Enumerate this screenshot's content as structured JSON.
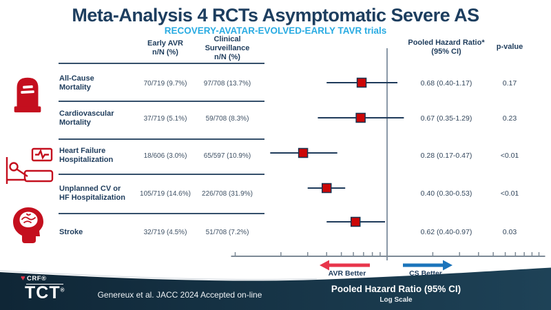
{
  "slide": {
    "title": "Meta-Analysis 4 RCTs Asymptomatic Severe AS",
    "subtitle": "RECOVERY-AVATAR-EVOLVED-EARLY TAVR trials"
  },
  "table": {
    "col_early": "Early AVR\nn/N (%)",
    "col_cs": "Clinical\nSurveillance\nn/N (%)",
    "col_hr": "Pooled Hazard Ratio*\n(95% CI)",
    "col_p": "p-value",
    "rows": [
      {
        "label": "All-Cause\nMortality",
        "early": "70/719 (9.7%)",
        "cs": "97/708 (13.7%)",
        "hr": "0.68 (0.40-1.17)",
        "p": "0.17"
      },
      {
        "label": "Cardiovascular\nMortality",
        "early": "37/719 (5.1%)",
        "cs": "59/708 (8.3%)",
        "hr": "0.67 (0.35-1.29)",
        "p": "0.23"
      },
      {
        "label": "Heart Failure\nHospitalization",
        "early": "18/606 (3.0%)",
        "cs": "65/597 (10.9%)",
        "hr": "0.28 (0.17-0.47)",
        "p": "<0.01"
      },
      {
        "label": "Unplanned CV or\nHF Hospitalization",
        "early": "105/719 (14.6%)",
        "cs": "226/708 (31.9%)",
        "hr": "0.40 (0.30-0.53)",
        "p": "<0.01"
      },
      {
        "label": "Stroke",
        "early": "32/719 (4.5%)",
        "cs": "51/708 (7.2%)",
        "hr": "0.62 (0.40-0.97)",
        "p": "0.03"
      }
    ]
  },
  "chart_data": {
    "type": "forest",
    "x_axis": {
      "scale": "log",
      "min": 0.1,
      "max": 10,
      "reference": 1.0,
      "ticks": [
        0.1,
        0.2,
        0.3,
        0.4,
        0.5,
        0.6,
        0.7,
        0.8,
        0.9,
        1,
        2,
        3,
        4,
        5,
        6,
        7,
        8,
        9,
        10
      ]
    },
    "series": [
      {
        "label": "All-Cause Mortality",
        "hr": 0.68,
        "ci_low": 0.4,
        "ci_high": 1.17
      },
      {
        "label": "Cardiovascular Mortality",
        "hr": 0.67,
        "ci_low": 0.35,
        "ci_high": 1.29
      },
      {
        "label": "Heart Failure Hospitalization",
        "hr": 0.28,
        "ci_low": 0.17,
        "ci_high": 0.47
      },
      {
        "label": "Unplanned CV or HF Hospitalization",
        "hr": 0.4,
        "ci_low": 0.3,
        "ci_high": 0.53
      },
      {
        "label": "Stroke",
        "hr": 0.62,
        "ci_low": 0.4,
        "ci_high": 0.97
      }
    ],
    "direction_labels": {
      "left": "AVR Better",
      "right": "CS Better"
    },
    "axis_title": "Pooled Hazard Ratio (95% CI)",
    "axis_subtitle": "Log Scale",
    "marker_color": "#cc0707",
    "marker_border_color": "#1a3350",
    "ci_line_color": "#1e3a5a",
    "ref_line_color": "#64778a",
    "axis_color": "#7d8a96",
    "left_arrow_color": "#e8354b",
    "right_arrow_color": "#1b74bb"
  },
  "icons": {
    "row_mortality": "tombstone-icon",
    "row_hospitalization": "hospital-bed-icon",
    "row_stroke": "brain-head-icon"
  },
  "footer": {
    "citation": "Genereux et al. JACC 2024 Accepted on-line",
    "axis_title": "Pooled Hazard Ratio (95% CI)",
    "axis_subtitle": "Log Scale",
    "logo_heart": "♥",
    "logo_top": "CRF®",
    "logo_main": "TCT",
    "logo_reg": "®"
  },
  "colors": {
    "title_navy": "#1d3e5f",
    "subtitle_blue": "#29abe2",
    "icon_red": "#c40f1e",
    "footer_navy_left": "#0f2636",
    "footer_navy_right": "#1e4257"
  }
}
